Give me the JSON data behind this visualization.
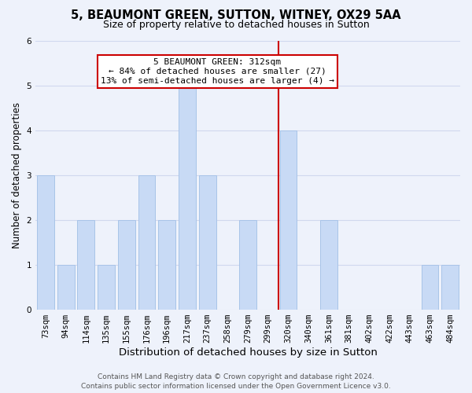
{
  "title": "5, BEAUMONT GREEN, SUTTON, WITNEY, OX29 5AA",
  "subtitle": "Size of property relative to detached houses in Sutton",
  "xlabel": "Distribution of detached houses by size in Sutton",
  "ylabel": "Number of detached properties",
  "categories": [
    "73sqm",
    "94sqm",
    "114sqm",
    "135sqm",
    "155sqm",
    "176sqm",
    "196sqm",
    "217sqm",
    "237sqm",
    "258sqm",
    "279sqm",
    "299sqm",
    "320sqm",
    "340sqm",
    "361sqm",
    "381sqm",
    "402sqm",
    "422sqm",
    "443sqm",
    "463sqm",
    "484sqm"
  ],
  "values": [
    3,
    1,
    2,
    1,
    2,
    3,
    2,
    5,
    3,
    0,
    2,
    0,
    4,
    0,
    2,
    0,
    0,
    0,
    0,
    1,
    1
  ],
  "bar_color": "#c8daf5",
  "bar_edge_color": "#a8c4e8",
  "property_line_index": 12,
  "property_line_color": "#cc0000",
  "annotation_title": "5 BEAUMONT GREEN: 312sqm",
  "annotation_line1": "← 84% of detached houses are smaller (27)",
  "annotation_line2": "13% of semi-detached houses are larger (4) →",
  "annotation_box_color": "#ffffff",
  "annotation_box_edgecolor": "#cc0000",
  "ylim": [
    0,
    6
  ],
  "yticks": [
    0,
    1,
    2,
    3,
    4,
    5,
    6
  ],
  "footer_line1": "Contains HM Land Registry data © Crown copyright and database right 2024.",
  "footer_line2": "Contains public sector information licensed under the Open Government Licence v3.0.",
  "background_color": "#eef2fb",
  "grid_color": "#d0d8ee",
  "title_fontsize": 10.5,
  "subtitle_fontsize": 9,
  "xlabel_fontsize": 9.5,
  "ylabel_fontsize": 8.5,
  "tick_fontsize": 7.5,
  "footer_fontsize": 6.5,
  "ann_fontsize": 8
}
